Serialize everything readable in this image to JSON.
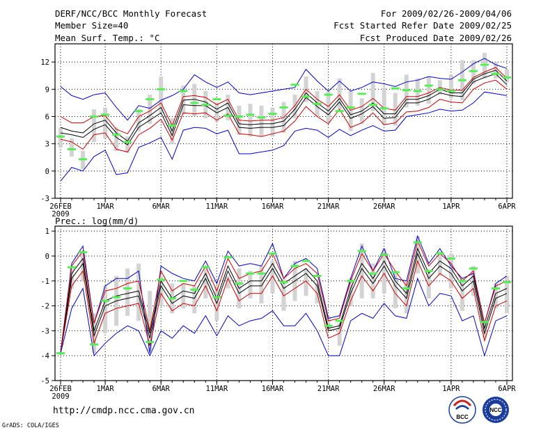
{
  "header": {
    "title": "DERF/NCC/BCC Monthly Forecast",
    "member_size": "Member Size=40",
    "variable": "Mean Surf. Temp.: °C",
    "period": "For 2009/02/26-2009/04/06",
    "started_refer": "Fcst Started Refer Date 2009/02/25",
    "produced": "Fcst Produced Date 2009/02/26"
  },
  "footer": {
    "url": "http://cmdp.ncc.cma.gov.cn",
    "credit": "GrADS: COLA/IGES",
    "logo_left_text": "BCC",
    "logo_right_text": "NCC"
  },
  "colors": {
    "envelope": "#0000cc",
    "spread": "#cc0000",
    "mean": "#000000",
    "box": "#d3d3d3",
    "median": "#55ee55",
    "grid": "#000000"
  },
  "chart_data": [
    {
      "type": "line",
      "title": "Mean Surf. Temp.: °C",
      "x_labels": [
        {
          "day": 0,
          "label": "26FEB",
          "sub": "2009"
        },
        {
          "day": 4,
          "label": "1MAR"
        },
        {
          "day": 9,
          "label": "6MAR"
        },
        {
          "day": 14,
          "label": "11MAR"
        },
        {
          "day": 19,
          "label": "16MAR"
        },
        {
          "day": 24,
          "label": "21MAR"
        },
        {
          "day": 29,
          "label": "26MAR"
        },
        {
          "day": 35,
          "label": "1APR"
        },
        {
          "day": 40,
          "label": "6APR"
        }
      ],
      "xlim": [
        -0.5,
        40.5
      ],
      "ylim": [
        -3,
        14
      ],
      "yticks": [
        -3,
        0,
        3,
        6,
        9,
        12
      ],
      "grid": "dotted",
      "series": [
        {
          "name": "max",
          "color": "#0000cc",
          "values": [
            9.3,
            8.3,
            7.9,
            8.4,
            8.6,
            7.0,
            5.6,
            7.2,
            6.9,
            7.8,
            8.3,
            9.0,
            10.6,
            9.8,
            9.2,
            9.8,
            8.6,
            8.4,
            8.6,
            8.8,
            9.0,
            9.2,
            11.2,
            9.9,
            8.8,
            9.9,
            8.8,
            9.2,
            9.8,
            9.6,
            9.3,
            9.8,
            10.0,
            10.4,
            10.2,
            10.1,
            10.9,
            11.8,
            12.4,
            11.7,
            11.3
          ]
        },
        {
          "name": "spread_high",
          "color": "#cc0000",
          "values": [
            6.0,
            5.3,
            5.3,
            6.0,
            6.1,
            4.6,
            4.1,
            6.0,
            6.6,
            7.5,
            5.0,
            8.2,
            8.3,
            8.1,
            7.3,
            7.9,
            5.6,
            5.5,
            5.6,
            5.6,
            5.9,
            7.2,
            9.0,
            7.9,
            7.1,
            8.4,
            6.7,
            7.1,
            8.0,
            6.9,
            6.7,
            8.2,
            8.2,
            8.6,
            9.2,
            8.9,
            8.9,
            10.3,
            10.9,
            11.4,
            10.2
          ]
        },
        {
          "name": "mean_high",
          "color": "#000000",
          "values": [
            4.8,
            4.4,
            4.2,
            5.2,
            5.6,
            4.2,
            3.3,
            5.3,
            6.1,
            7.0,
            4.4,
            7.8,
            7.9,
            7.6,
            6.8,
            7.5,
            5.2,
            5.1,
            5.2,
            5.2,
            5.5,
            6.8,
            8.6,
            7.5,
            6.6,
            8.0,
            6.2,
            6.6,
            7.5,
            6.3,
            6.3,
            7.9,
            7.9,
            8.3,
            9.0,
            8.6,
            8.6,
            10.1,
            10.7,
            11.1,
            9.9
          ]
        },
        {
          "name": "mean_low",
          "color": "#000000",
          "values": [
            4.2,
            4.0,
            3.7,
            4.6,
            5.1,
            3.7,
            2.9,
            4.8,
            5.6,
            6.4,
            3.9,
            7.3,
            7.2,
            7.2,
            6.4,
            7.0,
            4.8,
            4.7,
            4.8,
            4.8,
            5.0,
            6.3,
            8.1,
            7.1,
            6.2,
            7.6,
            5.8,
            6.3,
            7.1,
            5.8,
            5.9,
            7.5,
            7.5,
            7.9,
            8.6,
            8.3,
            8.2,
            9.8,
            10.3,
            10.7,
            9.5
          ]
        },
        {
          "name": "spread_low",
          "color": "#cc0000",
          "values": [
            3.5,
            3.2,
            2.4,
            4.0,
            4.2,
            2.4,
            2.1,
            4.0,
            4.7,
            5.7,
            3.4,
            6.4,
            6.3,
            6.4,
            5.6,
            6.3,
            4.1,
            4.0,
            3.8,
            4.1,
            4.4,
            5.5,
            7.1,
            6.0,
            5.2,
            6.8,
            4.8,
            5.3,
            6.4,
            5.1,
            5.3,
            6.5,
            6.6,
            7.0,
            7.9,
            7.6,
            7.5,
            9.0,
            9.7,
            10.0,
            9.0
          ]
        },
        {
          "name": "min",
          "color": "#0000cc",
          "values": [
            -1.1,
            0.4,
            0.0,
            1.6,
            2.3,
            -0.4,
            -0.2,
            2.6,
            3.1,
            3.7,
            1.3,
            4.5,
            4.8,
            4.7,
            4.1,
            4.5,
            1.9,
            1.9,
            2.1,
            2.3,
            2.8,
            4.4,
            4.7,
            4.5,
            3.7,
            4.6,
            3.9,
            4.5,
            5.0,
            4.4,
            4.5,
            6.0,
            6.2,
            6.4,
            6.8,
            6.6,
            6.7,
            7.5,
            8.7,
            8.5,
            8.3
          ]
        }
      ],
      "box_whisker": {
        "q_low": [
          2.6,
          1.6,
          0.2,
          3.2,
          3.6,
          2.2,
          2.0,
          4.4,
          5.2,
          6.4,
          3.0,
          6.2,
          6.0,
          5.8,
          5.4,
          5.6,
          4.0,
          3.8,
          3.8,
          3.8,
          4.2,
          5.8,
          7.6,
          6.0,
          5.4,
          6.8,
          4.4,
          5.2,
          6.6,
          5.0,
          5.0,
          7.0,
          7.2,
          7.4,
          8.4,
          8.0,
          7.8,
          9.6,
          10.2,
          10.2,
          9.8
        ],
        "q_high": [
          4.8,
          3.6,
          2.2,
          6.8,
          7.0,
          4.8,
          3.8,
          6.8,
          8.4,
          10.4,
          5.8,
          9.4,
          9.6,
          8.8,
          7.6,
          8.4,
          7.2,
          7.4,
          7.2,
          7.0,
          7.6,
          8.4,
          10.4,
          8.8,
          8.8,
          10.2,
          8.8,
          8.0,
          10.8,
          9.2,
          8.6,
          10.6,
          10.2,
          10.4,
          10.0,
          10.6,
          12.2,
          12.2,
          13.0,
          12.0,
          11.2
        ],
        "median": [
          3.8,
          2.4,
          1.3,
          6.0,
          6.2,
          4.0,
          3.2,
          6.6,
          7.9,
          9.0,
          5.0,
          8.8,
          7.5,
          7.3,
          7.9,
          6.1,
          6.0,
          6.2,
          5.9,
          6.3,
          7.0,
          9.5,
          8.2,
          7.4,
          8.4,
          6.6,
          7.0,
          8.5,
          7.3,
          6.9,
          9.1,
          8.9,
          8.8,
          9.4,
          9.0,
          8.8,
          10.0,
          11.0,
          11.7,
          10.7,
          10.3
        ]
      }
    },
    {
      "type": "line",
      "title": "Prec.: log(mm/d)",
      "x_labels": [
        {
          "day": 0,
          "label": "26FEB",
          "sub": "2009"
        },
        {
          "day": 4,
          "label": "1MAR"
        },
        {
          "day": 9,
          "label": "6MAR"
        },
        {
          "day": 14,
          "label": "11MAR"
        },
        {
          "day": 19,
          "label": "16MAR"
        },
        {
          "day": 24,
          "label": "21MAR"
        },
        {
          "day": 29,
          "label": "26MAR"
        },
        {
          "day": 35,
          "label": "1APR"
        },
        {
          "day": 40,
          "label": "6APR"
        }
      ],
      "xlim": [
        -0.5,
        40.5
      ],
      "ylim": [
        -5,
        1.2
      ],
      "yticks": [
        -5,
        -4,
        -3,
        -2,
        -1,
        0,
        1
      ],
      "grid": "dotted",
      "series": [
        {
          "name": "max",
          "color": "#0000cc",
          "values": [
            -3.9,
            -0.3,
            0.4,
            -2.7,
            -1.2,
            -0.9,
            -0.9,
            -0.6,
            -3.9,
            -0.4,
            -0.7,
            -0.9,
            -1.0,
            -0.2,
            -1.1,
            0.2,
            -0.4,
            -0.3,
            -0.4,
            0.5,
            -0.9,
            -0.3,
            -0.1,
            -0.5,
            -2.5,
            -2.4,
            -0.9,
            0.4,
            -0.6,
            0.3,
            -0.9,
            -1.0,
            0.8,
            -0.3,
            0.3,
            -0.4,
            -0.9,
            -0.7,
            -2.7,
            -1.1,
            -0.8
          ]
        },
        {
          "name": "spread_high",
          "color": "#cc0000",
          "values": [
            -3.9,
            -0.4,
            0.2,
            -2.7,
            -1.4,
            -1.3,
            -1.1,
            -1.0,
            -3.0,
            -0.6,
            -1.4,
            -1.1,
            -1.2,
            -0.4,
            -1.4,
            -0.1,
            -0.9,
            -0.7,
            -0.6,
            0.1,
            -0.9,
            -0.5,
            -0.3,
            -0.7,
            -2.6,
            -2.5,
            -1.0,
            0.1,
            -0.6,
            0.1,
            -0.6,
            -1.2,
            0.6,
            -0.4,
            0.1,
            -0.3,
            -1.0,
            -0.6,
            -2.7,
            -1.2,
            -1.0
          ]
        },
        {
          "name": "mean_high",
          "color": "#000000",
          "values": [
            -3.9,
            -0.7,
            -0.1,
            -3.0,
            -1.8,
            -1.6,
            -1.5,
            -1.4,
            -3.1,
            -1.0,
            -1.7,
            -1.4,
            -1.5,
            -0.7,
            -1.7,
            -0.4,
            -1.3,
            -1.0,
            -1.0,
            -0.3,
            -1.1,
            -0.8,
            -0.5,
            -1.0,
            -2.9,
            -2.8,
            -1.3,
            -0.3,
            -0.9,
            -0.2,
            -1.0,
            -1.5,
            0.3,
            -0.7,
            -0.2,
            -0.5,
            -1.2,
            -0.8,
            -2.9,
            -1.5,
            -1.3
          ]
        },
        {
          "name": "mean_low",
          "color": "#000000",
          "values": [
            -3.9,
            -0.9,
            -0.3,
            -3.2,
            -2.0,
            -1.8,
            -1.7,
            -1.6,
            -3.3,
            -1.2,
            -1.9,
            -1.6,
            -1.7,
            -0.9,
            -1.9,
            -0.6,
            -1.5,
            -1.2,
            -1.2,
            -0.5,
            -1.3,
            -1.0,
            -0.7,
            -1.2,
            -3.0,
            -2.9,
            -1.5,
            -0.5,
            -1.1,
            -0.4,
            -1.2,
            -1.7,
            0.1,
            -0.9,
            -0.4,
            -0.7,
            -1.4,
            -1.0,
            -3.1,
            -1.7,
            -1.5
          ]
        },
        {
          "name": "spread_low",
          "color": "#cc0000",
          "values": [
            -3.9,
            -1.2,
            -0.6,
            -3.5,
            -2.3,
            -2.1,
            -2.0,
            -1.9,
            -3.6,
            -1.5,
            -2.2,
            -1.9,
            -2.0,
            -1.2,
            -2.2,
            -0.9,
            -1.8,
            -1.5,
            -1.5,
            -0.8,
            -1.6,
            -1.3,
            -1.0,
            -1.5,
            -3.3,
            -3.1,
            -1.8,
            -0.8,
            -1.4,
            -0.7,
            -1.5,
            -2.0,
            -0.2,
            -1.2,
            -0.7,
            -1.0,
            -1.7,
            -1.3,
            -3.4,
            -2.0,
            -1.8
          ]
        },
        {
          "name": "min",
          "color": "#0000cc",
          "values": [
            -3.9,
            -2.1,
            -1.3,
            -4.0,
            -3.5,
            -3.1,
            -2.8,
            -3.0,
            -4.0,
            -3.0,
            -3.3,
            -2.8,
            -3.1,
            -2.4,
            -3.2,
            -2.4,
            -2.8,
            -2.6,
            -2.5,
            -2.2,
            -2.8,
            -2.8,
            -2.3,
            -3.0,
            -4.0,
            -4.0,
            -2.6,
            -2.3,
            -2.5,
            -1.9,
            -2.4,
            -2.5,
            -0.9,
            -2.0,
            -1.5,
            -1.6,
            -2.6,
            -2.4,
            -4.0,
            -2.6,
            -2.4
          ]
        }
      ],
      "box_whisker": {
        "q_low": [
          -3.9,
          -1.3,
          -1.0,
          -3.9,
          -3.1,
          -2.8,
          -2.4,
          -2.6,
          -3.8,
          -2.0,
          -2.3,
          -2.1,
          -2.3,
          -1.7,
          -2.6,
          -1.3,
          -2.1,
          -1.7,
          -1.9,
          -1.5,
          -2.2,
          -1.8,
          -1.6,
          -1.9,
          -3.0,
          -3.6,
          -2.0,
          -1.7,
          -1.7,
          -1.5,
          -2.1,
          -2.3,
          -0.7,
          -1.7,
          -0.8,
          -1.3,
          -2.2,
          -1.6,
          -3.3,
          -2.1,
          -2.3
        ],
        "q_high": [
          -3.9,
          -0.5,
          0.1,
          -2.3,
          -1.2,
          -0.8,
          -0.5,
          -0.3,
          -1.4,
          -0.8,
          -1.1,
          -1.1,
          -1.2,
          -0.5,
          -1.2,
          -0.8,
          -0.5,
          -0.6,
          -0.4,
          -0.2,
          -0.9,
          -0.2,
          -0.5,
          -1.1,
          -2.4,
          -2.7,
          -0.9,
          0.5,
          -0.3,
          0.3,
          -0.6,
          -1.0,
          0.8,
          -0.7,
          0.2,
          0.1,
          -0.9,
          -0.4,
          -2.6,
          -1.1,
          -0.8
        ]
      },
      "median_marks": [
        -3.9,
        -0.45,
        0.15,
        -3.55,
        -1.8,
        -1.65,
        -1.3,
        -3.45,
        -0.95,
        -1.7,
        -1.0,
        -1.35,
        -0.45,
        -1.65,
        -0.05,
        -1.1,
        -0.7,
        -0.7,
        0.1,
        -1.05,
        -0.4,
        -0.2,
        -0.8,
        -2.8,
        -2.6,
        -1.0,
        0.2,
        -0.7,
        0.05,
        -0.65,
        -1.3,
        0.55,
        -0.6,
        0.1,
        -0.1,
        -1.0,
        -0.5,
        -2.65,
        -1.3,
        -1.05
      ],
      "median_days": [
        0,
        1,
        2,
        3,
        4,
        5,
        6,
        8,
        9,
        10,
        11,
        12,
        13,
        14,
        15,
        16,
        17,
        18,
        19,
        20,
        21,
        22,
        23,
        24,
        25,
        26,
        27,
        28,
        29,
        30,
        31,
        32,
        33,
        34,
        35,
        36,
        37,
        38,
        39,
        40
      ]
    }
  ]
}
